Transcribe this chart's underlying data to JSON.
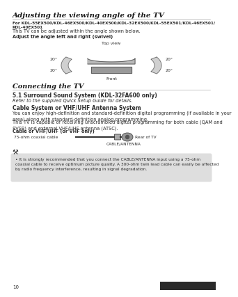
{
  "page_bg": "#ffffff",
  "title": "Adjusting the viewing angle of the TV",
  "subtitle_bold": "For KDL-55EX500/KDL-46EX500/KDL-40EX500/KDL-32EX500/KDL-55EX501/KDL-46EX501/\nKDL-40EX501",
  "subtitle_normal": "This TV can be adjusted within the angle shown below.",
  "swivel_bold": "Adjust the angle left and right (swivel)",
  "top_view_label": "Top view",
  "front_label": "Front",
  "section2_title": "Connecting the TV",
  "section3_title": "5.1 Surround Sound System (KDL-32FA600 only)",
  "section3_text": "Refer to the supplied Quick Setup Guide for details.",
  "section4_title": "Cable System or VHF/UHF Antenna System",
  "section4_text1": "You can enjoy high-definition and standard-definition digital programming (if available in your\narea) along with standard-definition analog programming.",
  "section4_text2": "This TV is capable of receiving unscrambled digital programming for both cable (QAM and\n8VSB) and external VHF/UHF antenna (ATSC).",
  "cable_bold": "Cable or VHF/UHF (or VHF only)",
  "cable_label_left": "75-ohm coaxial cable",
  "cable_label_right": "Rear of TV",
  "cable_bottom": "CABLE/ANTENNA",
  "tip_text": "It is strongly recommended that you connect the CABLE/ANTENNA input using a 75-ohm\ncoaxial cable to receive optimum picture quality. A 300-ohm twin lead cable can easily be affected\nby radio frequency interference, resulting in signal degradation.",
  "page_num": "10",
  "title_color": "#1a1a1a",
  "text_color": "#2a2a2a",
  "gray_box_color": "#d0d0d0",
  "rule_color": "#999999"
}
